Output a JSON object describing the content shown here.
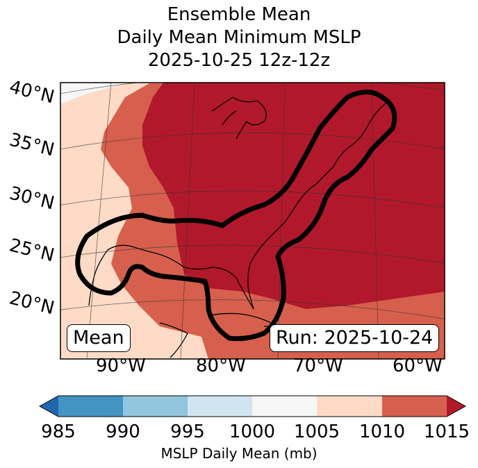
{
  "title": {
    "line1": "Ensemble Mean",
    "line2": "Daily Mean Minimum MSLP",
    "line3": "2025-10-25 12z-12z"
  },
  "lat_labels": [
    "40°N",
    "35°N",
    "30°N",
    "25°N",
    "20°N"
  ],
  "lon_labels": [
    "90°W",
    "80°W",
    "70°W",
    "60°W"
  ],
  "annotations": {
    "left": "Mean",
    "right": "Run: 2025-10-24"
  },
  "colorbar": {
    "label": "MSLP Daily Mean (mb)",
    "ticks": [
      "985",
      "990",
      "995",
      "1000",
      "1005",
      "1010",
      "1015"
    ],
    "colors": {
      "under": "#2166ac",
      "b985": "#4393c3",
      "b990": "#92c5de",
      "b995": "#d1e5f0",
      "b1000": "#f7f7f7",
      "b1005": "#fddbc7",
      "b1010": "#d6604d",
      "over": "#b2182b"
    }
  }
}
